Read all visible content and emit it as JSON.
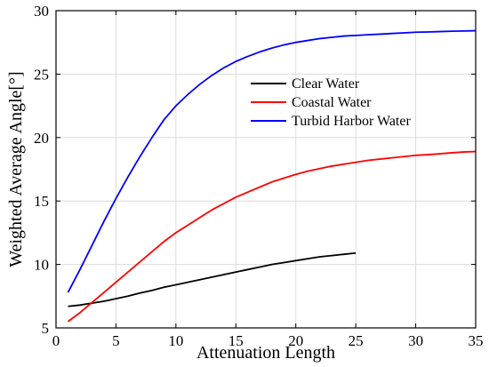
{
  "chart_data": {
    "type": "line",
    "xlabel": "Attenuation Length",
    "ylabel": "Weighted Average Angle[°]",
    "xlim": [
      0,
      35
    ],
    "ylim": [
      5,
      30
    ],
    "xticks": [
      0,
      5,
      10,
      15,
      20,
      25,
      30,
      35
    ],
    "yticks": [
      5,
      10,
      15,
      20,
      25,
      30
    ],
    "grid": true,
    "legend_position": "top-right",
    "series": [
      {
        "name": "Clear Water",
        "color": "#000000",
        "x": [
          1,
          2,
          3,
          4,
          5,
          6,
          7,
          8,
          9,
          10,
          11,
          12,
          13,
          14,
          15,
          16,
          17,
          18,
          19,
          20,
          21,
          22,
          23,
          24,
          25
        ],
        "y": [
          6.7,
          6.8,
          6.95,
          7.1,
          7.3,
          7.5,
          7.75,
          7.95,
          8.2,
          8.4,
          8.6,
          8.8,
          9.0,
          9.2,
          9.4,
          9.6,
          9.8,
          10.0,
          10.15,
          10.3,
          10.45,
          10.6,
          10.7,
          10.8,
          10.9
        ]
      },
      {
        "name": "Coastal Water",
        "color": "#ff0000",
        "x": [
          1,
          2,
          3,
          4,
          5,
          6,
          7,
          8,
          9,
          10,
          11,
          12,
          13,
          14,
          15,
          16,
          17,
          18,
          19,
          20,
          21,
          22,
          23,
          24,
          25,
          26,
          27,
          28,
          29,
          30,
          31,
          32,
          33,
          34,
          35
        ],
        "y": [
          5.5,
          6.2,
          7.0,
          7.8,
          8.6,
          9.4,
          10.2,
          11.0,
          11.8,
          12.5,
          13.1,
          13.7,
          14.3,
          14.8,
          15.3,
          15.7,
          16.1,
          16.5,
          16.8,
          17.1,
          17.35,
          17.55,
          17.75,
          17.9,
          18.05,
          18.2,
          18.3,
          18.4,
          18.5,
          18.6,
          18.65,
          18.72,
          18.8,
          18.86,
          18.9
        ]
      },
      {
        "name": "Turbid Harbor Water",
        "color": "#0000ff",
        "x": [
          1,
          2,
          3,
          4,
          5,
          6,
          7,
          8,
          9,
          10,
          11,
          12,
          13,
          14,
          15,
          16,
          17,
          18,
          19,
          20,
          21,
          22,
          23,
          24,
          25,
          26,
          27,
          28,
          29,
          30,
          31,
          32,
          33,
          34,
          35
        ],
        "y": [
          7.8,
          9.6,
          11.5,
          13.4,
          15.2,
          16.9,
          18.5,
          20.0,
          21.4,
          22.5,
          23.4,
          24.2,
          24.9,
          25.5,
          26.0,
          26.4,
          26.75,
          27.05,
          27.3,
          27.5,
          27.65,
          27.8,
          27.9,
          28.0,
          28.05,
          28.1,
          28.15,
          28.2,
          28.25,
          28.3,
          28.32,
          28.35,
          28.38,
          28.4,
          28.42
        ]
      }
    ]
  }
}
